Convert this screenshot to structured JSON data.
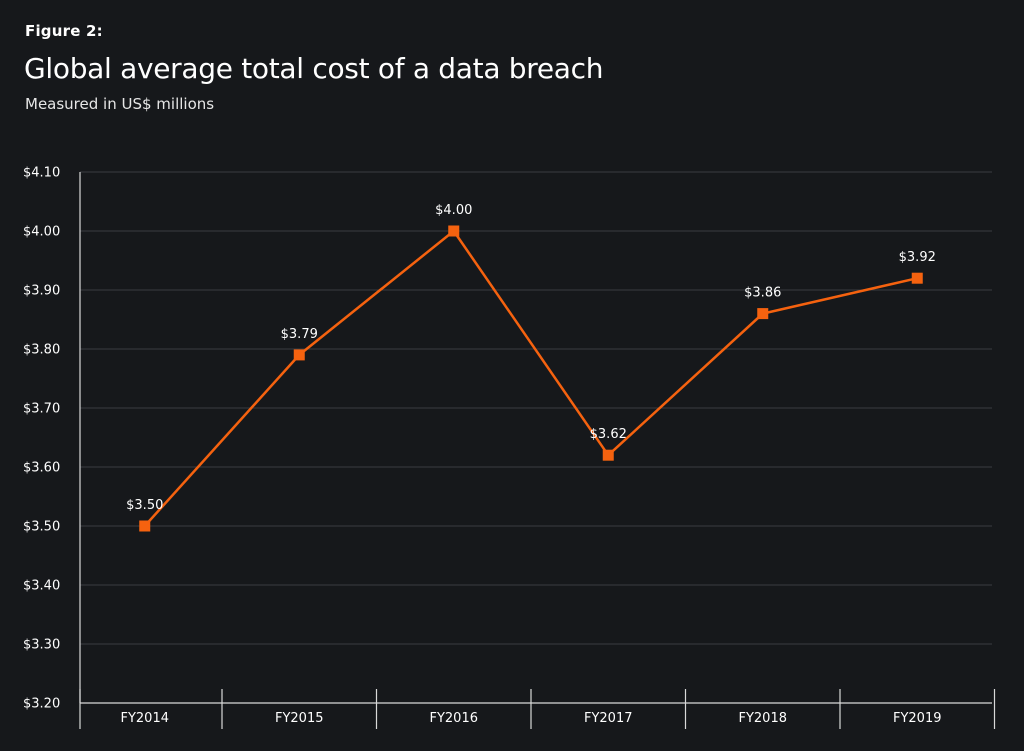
{
  "figure_label": "Figure 2:",
  "title": "Global average total cost of a data breach",
  "subtitle": "Measured in US$ millions",
  "colors": {
    "background": "#16181b",
    "series": "#f5620f",
    "gridline": "#3a3d42",
    "axis": "#d9d9d9",
    "text": "#ffffff"
  },
  "chart_data": {
    "type": "line",
    "categories": [
      "FY2014",
      "FY2015",
      "FY2016",
      "FY2017",
      "FY2018",
      "FY2019"
    ],
    "series": [
      {
        "values": [
          3.5,
          3.79,
          4.0,
          3.62,
          3.86,
          3.92
        ],
        "data_labels": [
          "$3.50",
          "$3.79",
          "$4.00",
          "$3.62",
          "$3.86",
          "$3.92"
        ],
        "marker": "square"
      }
    ],
    "ylim": [
      3.2,
      4.1
    ],
    "yticks": [
      3.2,
      3.3,
      3.4,
      3.5,
      3.6,
      3.7,
      3.8,
      3.9,
      4.0,
      4.1
    ],
    "ytick_labels": [
      "$3.20",
      "$3.30",
      "$3.40",
      "$3.50",
      "$3.60",
      "$3.70",
      "$3.80",
      "$3.90",
      "$4.00",
      "$4.10"
    ],
    "grid": "horizontal",
    "legend": "none",
    "xlabel": "",
    "ylabel": ""
  }
}
